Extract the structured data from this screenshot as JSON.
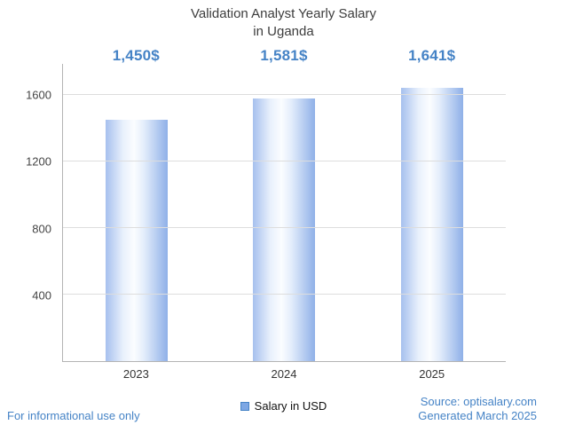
{
  "title": {
    "line1": "Validation Analyst Yearly Salary",
    "line2": "in Uganda"
  },
  "chart_data": {
    "type": "bar",
    "title": "Validation Analyst Yearly Salary in Uganda",
    "categories": [
      "2023",
      "2024",
      "2025"
    ],
    "values": [
      1450,
      1581,
      1641
    ],
    "value_labels": [
      "1,450$",
      "1,581$",
      "1,641$"
    ],
    "series_name": "Salary in USD",
    "xlabel": "",
    "ylabel": "",
    "ylim": [
      0,
      1787
    ],
    "yticks": [
      400,
      800,
      1200,
      1600
    ],
    "grid": true,
    "legend_position": "bottom"
  },
  "legend": {
    "label": "Salary in USD"
  },
  "footer": {
    "left": "For informational use only",
    "source": "Source: optisalary.com",
    "generated": "Generated March 2025"
  },
  "colors": {
    "accent_blue": "#4583c6",
    "bar_edge": "#8fb0e8",
    "bar_center": "#fbfdff",
    "legend_square": "#7da7e4",
    "grid": "#dddddd",
    "axis": "#b3b3b3",
    "title_text": "#3d3d3d",
    "tick_text": "#444444"
  }
}
